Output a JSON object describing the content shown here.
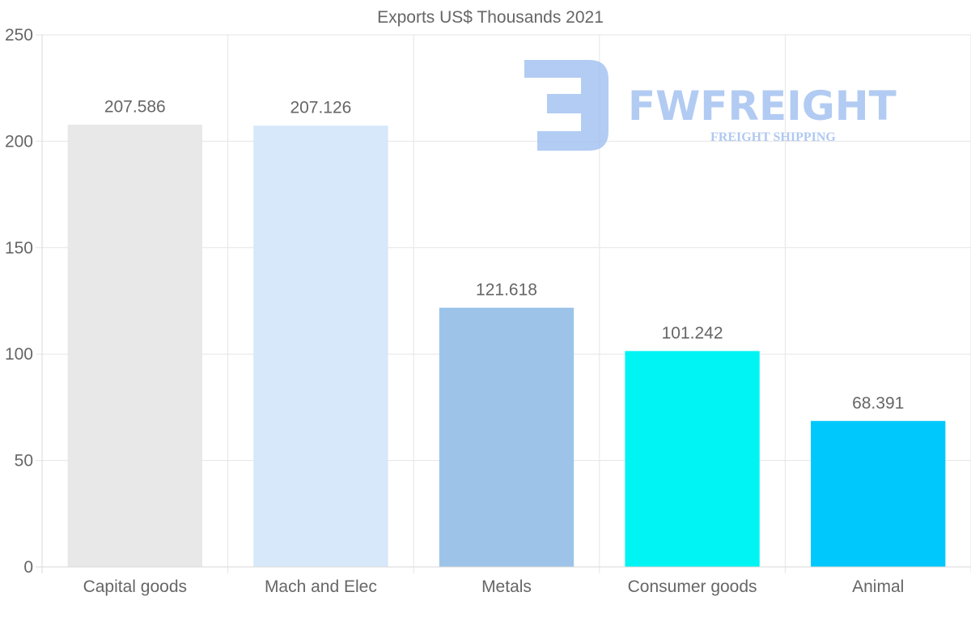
{
  "chart_data": {
    "type": "bar",
    "title": "Exports US$ Thousands 2021",
    "categories": [
      "Capital goods",
      "Mach and Elec",
      "Metals",
      "Consumer goods",
      "Animal"
    ],
    "values": [
      207.586,
      207.126,
      121.618,
      101.242,
      68.391
    ],
    "data_labels": [
      "207.586",
      "207.126",
      "121.618",
      "101.242",
      "68.391"
    ],
    "colors": [
      "#e8e8e8",
      "#d6e8fa",
      "#9dc4e8",
      "#00f4f4",
      "#00c8fc"
    ],
    "ylim": [
      0,
      250
    ],
    "yticks": [
      0,
      50,
      100,
      150,
      200,
      250
    ],
    "xlabel": "",
    "ylabel": "",
    "grid": true,
    "legend": "none"
  },
  "watermark": {
    "brand": "FWFREIGHT",
    "tagline": "FREIGHT SHIPPING",
    "color": "#9fbff0"
  }
}
